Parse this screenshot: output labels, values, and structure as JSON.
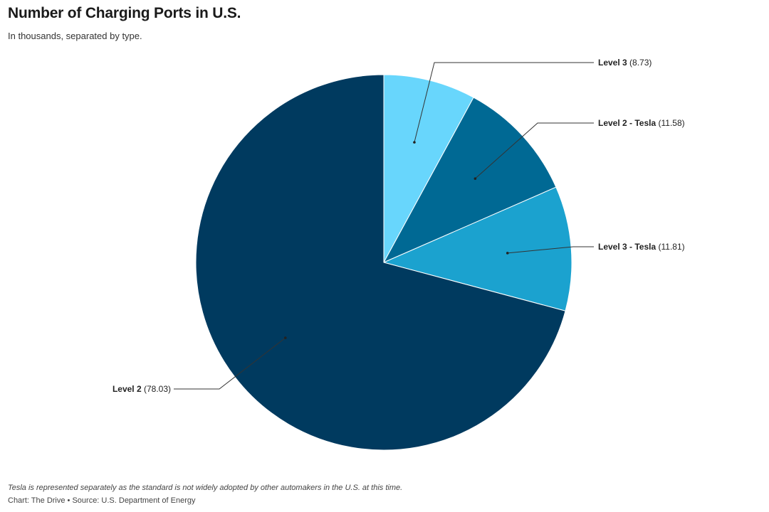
{
  "header": {
    "title": "Number of Charging Ports in U.S.",
    "subtitle": "In thousands, separated by type."
  },
  "footer": {
    "note": "Tesla is represented separately as the standard is not widely adopted by other automakers in the U.S. at this time.",
    "source": "Chart: The Drive • Source: U.S. Department of Energy"
  },
  "chart_data": {
    "type": "pie",
    "title": "Number of Charging Ports in U.S.",
    "subtitle": "In thousands, separated by type.",
    "units": "thousands",
    "slices": [
      {
        "label": "Level 3",
        "value": 8.73,
        "value_text": "(8.73)",
        "color": "#68d6fc"
      },
      {
        "label": "Level 2 - Tesla",
        "value": 11.58,
        "value_text": "(11.58)",
        "color": "#006994"
      },
      {
        "label": "Level 3 - Tesla",
        "value": 11.81,
        "value_text": "(11.81)",
        "color": "#1ba2cf"
      },
      {
        "label": "Level 2",
        "value": 78.03,
        "value_text": "(78.03)",
        "color": "#003a5f"
      }
    ],
    "start_angle": "12 o'clock",
    "direction": "clockwise",
    "legend": "none (direct labels)"
  }
}
